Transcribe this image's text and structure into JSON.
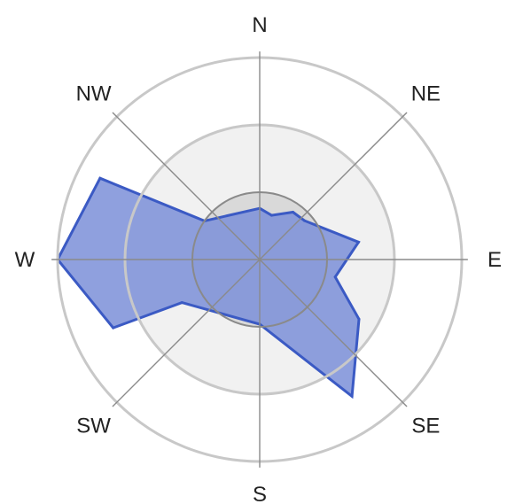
{
  "chart_data": {
    "type": "radar",
    "title": "",
    "directions": [
      "N",
      "NE",
      "E",
      "SE",
      "S",
      "SW",
      "W",
      "NW"
    ],
    "rings": [
      1,
      2,
      3
    ],
    "r_max": 3,
    "grid": true,
    "series": [
      {
        "points": [
          {
            "angle_deg": 0,
            "r": 0.76
          },
          {
            "angle_deg": 15,
            "r": 0.68
          },
          {
            "angle_deg": 35,
            "r": 0.86
          },
          {
            "angle_deg": 49,
            "r": 0.88
          },
          {
            "angle_deg": 80,
            "r": 1.49
          },
          {
            "angle_deg": 103,
            "r": 1.15
          },
          {
            "angle_deg": 121,
            "r": 1.72
          },
          {
            "angle_deg": 146,
            "r": 2.45
          },
          {
            "angle_deg": 180,
            "r": 0.96
          },
          {
            "angle_deg": 241,
            "r": 1.32
          },
          {
            "angle_deg": 245,
            "r": 2.4
          },
          {
            "angle_deg": 270,
            "r": 3.0
          },
          {
            "angle_deg": 297,
            "r": 2.66
          },
          {
            "angle_deg": 305,
            "r": 1.0
          }
        ]
      }
    ]
  },
  "colors": {
    "fill": "#7b8fd8",
    "stroke": "#3b5ac4",
    "inner_disc": "#d9d9d9",
    "ring": "#c8c8c8",
    "spoke": "#8a8a8a",
    "text": "#222222"
  }
}
